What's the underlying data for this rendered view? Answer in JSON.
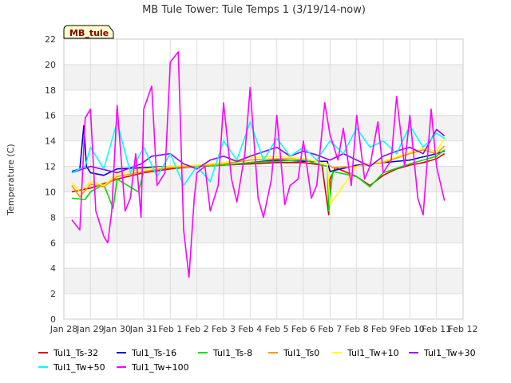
{
  "chart_data": {
    "type": "line",
    "title": "MB Tule Tower: Tule Temps 1 (3/19/14-now)",
    "xlabel": "",
    "ylabel": "Temperature (C)",
    "badge": "MB_tule",
    "xlim": [
      0,
      15
    ],
    "ylim": [
      0,
      22
    ],
    "x_ticks": [
      {
        "v": 0,
        "label": "Jan 28"
      },
      {
        "v": 1,
        "label": "Jan 29"
      },
      {
        "v": 2,
        "label": "Jan 30"
      },
      {
        "v": 3,
        "label": "Jan 31"
      },
      {
        "v": 4,
        "label": "Feb 1"
      },
      {
        "v": 5,
        "label": "Feb 2"
      },
      {
        "v": 6,
        "label": "Feb 3"
      },
      {
        "v": 7,
        "label": "Feb 4"
      },
      {
        "v": 8,
        "label": "Feb 5"
      },
      {
        "v": 9,
        "label": "Feb 6"
      },
      {
        "v": 10,
        "label": "Feb 7"
      },
      {
        "v": 11,
        "label": "Feb 8"
      },
      {
        "v": 12,
        "label": "Feb 9"
      },
      {
        "v": 13,
        "label": "Feb 10"
      },
      {
        "v": 14,
        "label": "Feb 11"
      },
      {
        "v": 15,
        "label": "Feb 12"
      }
    ],
    "y_ticks": [
      0,
      2,
      4,
      6,
      8,
      10,
      12,
      14,
      16,
      18,
      20,
      22
    ],
    "grid": true,
    "legend_position": "bottom",
    "series": [
      {
        "name": "Tul1_Ts-32",
        "color": "#dd0000",
        "x": [
          0.3,
          1,
          2,
          3,
          4,
          5,
          6,
          7,
          8,
          9,
          9.7,
          9.95,
          10,
          10.2,
          11,
          11.5,
          12,
          12.5,
          13,
          13.5,
          14,
          14.3
        ],
        "y": [
          10.0,
          10.3,
          11.0,
          11.5,
          11.8,
          12.0,
          12.1,
          12.2,
          12.3,
          12.3,
          12.1,
          8.2,
          11.0,
          11.9,
          11.2,
          10.5,
          11.3,
          11.8,
          12.1,
          12.3,
          12.6,
          13.0
        ]
      },
      {
        "name": "Tul1_Ts-16",
        "color": "#0000cc",
        "x": [
          0.3,
          0.6,
          0.75,
          0.85,
          1,
          1.5,
          2,
          3,
          4,
          5,
          6,
          7,
          8,
          9,
          9.9,
          10,
          11,
          12,
          13,
          14,
          14.3
        ],
        "y": [
          11.6,
          11.8,
          15.2,
          12.0,
          11.5,
          11.3,
          11.8,
          11.9,
          12.0,
          12.0,
          12.1,
          12.3,
          12.5,
          12.4,
          12.4,
          11.6,
          12.1,
          12.3,
          12.5,
          13.0,
          13.2
        ]
      },
      {
        "name": "Tul1_Ts-8",
        "color": "#00dd00",
        "x": [
          0.3,
          0.8,
          1,
          1.5,
          1.85,
          2,
          2.8,
          3,
          4,
          5,
          6,
          7,
          8,
          9,
          9.9,
          9.95,
          10.1,
          11,
          11.5,
          12,
          13,
          14,
          14.3
        ],
        "y": [
          9.5,
          9.4,
          10.0,
          10.6,
          8.7,
          11.0,
          10.0,
          11.6,
          11.9,
          12.0,
          12.1,
          12.3,
          12.4,
          12.5,
          12.0,
          8.5,
          11.6,
          11.2,
          10.4,
          11.5,
          12.2,
          12.8,
          13.3
        ]
      },
      {
        "name": "Tul1_Ts0",
        "color": "#ff9900",
        "x": [
          0.3,
          0.6,
          1,
          1.5,
          2,
          3,
          4,
          5,
          6,
          7,
          8,
          9,
          9.9,
          10.1,
          11,
          12,
          13,
          13.5,
          14,
          14.3
        ],
        "y": [
          10.5,
          9.6,
          10.6,
          10.4,
          11.2,
          11.6,
          11.9,
          12.0,
          12.2,
          12.5,
          12.6,
          12.6,
          12.2,
          11.9,
          12.0,
          12.3,
          13.0,
          13.3,
          13.0,
          13.6
        ]
      },
      {
        "name": "Tul1_Tw+10",
        "color": "#ffff00",
        "x": [
          0.3,
          0.6,
          1,
          1.5,
          2,
          3,
          4,
          5,
          6,
          7,
          8,
          9,
          9.9,
          10,
          11,
          12,
          13,
          13.5,
          14,
          14.3
        ],
        "y": [
          10.7,
          10.0,
          10.8,
          10.5,
          11.4,
          11.8,
          12.0,
          12.1,
          12.3,
          12.7,
          12.8,
          12.6,
          12.2,
          9.0,
          12.0,
          12.4,
          13.1,
          13.4,
          13.2,
          14.2
        ]
      },
      {
        "name": "Tul1_Tw+30",
        "color": "#9900ff",
        "x": [
          0.3,
          1,
          2,
          2.9,
          3.3,
          4,
          4.5,
          5,
          5.5,
          6,
          6.5,
          7,
          8,
          8.5,
          9,
          9.5,
          10,
          10.5,
          11,
          11.5,
          12,
          12.5,
          13,
          13.5,
          14,
          14.3
        ],
        "y": [
          11.5,
          12.0,
          11.5,
          12.2,
          12.8,
          13.0,
          12.2,
          11.8,
          12.5,
          12.8,
          12.4,
          12.8,
          13.5,
          12.8,
          13.2,
          12.9,
          12.5,
          13.0,
          12.5,
          12.0,
          12.8,
          13.2,
          13.5,
          13.0,
          14.9,
          14.4
        ]
      },
      {
        "name": "Tul1_Tw+50",
        "color": "#00ffff",
        "x": [
          0.3,
          0.8,
          1,
          1.5,
          2,
          2.5,
          3,
          3.5,
          4,
          4.5,
          5,
          5.5,
          6,
          6.5,
          7,
          7.5,
          8,
          8.5,
          9,
          9.5,
          10,
          10.5,
          11,
          11.5,
          12,
          12.5,
          13,
          13.5,
          14,
          14.3
        ],
        "y": [
          11.5,
          12.0,
          13.5,
          11.8,
          15.5,
          11.5,
          13.5,
          11.2,
          13.0,
          10.5,
          12.0,
          10.8,
          14.0,
          12.5,
          15.5,
          12.5,
          14.2,
          12.8,
          13.5,
          12.5,
          14.0,
          13.0,
          15.0,
          13.5,
          14.0,
          13.0,
          15.2,
          13.5,
          14.6,
          14.2
        ]
      },
      {
        "name": "Tul1_Tw+100",
        "color": "#ff00ff",
        "x": [
          0.3,
          0.6,
          0.8,
          1,
          1.2,
          1.5,
          1.65,
          1.8,
          2,
          2.3,
          2.5,
          2.7,
          2.9,
          3,
          3.3,
          3.5,
          3.8,
          4,
          4.3,
          4.5,
          4.7,
          4.9,
          5,
          5.3,
          5.5,
          5.8,
          6,
          6.3,
          6.5,
          6.8,
          7,
          7.3,
          7.5,
          7.8,
          8,
          8.3,
          8.5,
          8.8,
          9,
          9.3,
          9.5,
          9.8,
          10,
          10.3,
          10.5,
          10.8,
          11,
          11.3,
          11.5,
          11.8,
          12,
          12.3,
          12.5,
          12.8,
          13,
          13.3,
          13.5,
          13.8,
          14,
          14.3
        ],
        "y": [
          7.8,
          7.0,
          15.8,
          16.5,
          8.5,
          6.5,
          6.0,
          8.5,
          16.8,
          8.5,
          9.5,
          13.0,
          8.0,
          16.5,
          18.3,
          10.5,
          11.5,
          20.2,
          21.0,
          7.0,
          3.3,
          9.5,
          11.5,
          12.0,
          8.5,
          10.5,
          17.0,
          11.0,
          9.2,
          13.0,
          18.2,
          9.5,
          8.0,
          11.0,
          16.0,
          9.0,
          10.5,
          11.0,
          14.0,
          9.5,
          10.5,
          17.0,
          14.5,
          12.5,
          15.0,
          10.5,
          16.0,
          11.0,
          12.0,
          15.5,
          11.5,
          12.5,
          17.5,
          12.0,
          16.0,
          9.5,
          8.2,
          16.5,
          12.0,
          9.3
        ]
      }
    ]
  }
}
